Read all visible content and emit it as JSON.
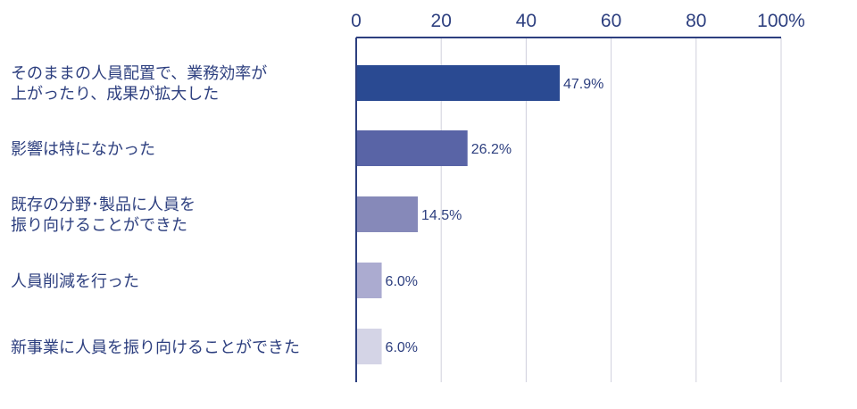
{
  "chart_data": {
    "type": "bar",
    "orientation": "horizontal",
    "categories": [
      [
        "そのままの人員配置で、業務効率が",
        "上がったり、成果が拡大した"
      ],
      [
        "影響は特になかった"
      ],
      [
        "既存の分野･製品に人員を",
        "振り向けることができた"
      ],
      [
        "人員削減を行った"
      ],
      [
        "新事業に人員を振り向けることができた"
      ]
    ],
    "values": [
      47.9,
      26.2,
      14.5,
      6.0,
      6.0
    ],
    "value_labels": [
      "47.9%",
      "26.2%",
      "14.5%",
      "6.0%",
      "6.0%"
    ],
    "x_ticks": [
      "0",
      "20",
      "40",
      "60",
      "80",
      "100%"
    ],
    "x_tick_values": [
      0,
      20,
      40,
      60,
      80,
      100
    ],
    "xlim": [
      0,
      100
    ],
    "axis_position": "top",
    "grid": true,
    "bar_colors": [
      "#2a4a92",
      "#5964a6",
      "#8689b9",
      "#ababd0",
      "#d4d4e6"
    ],
    "text_color": "#2d3f7f",
    "axis_color": "#2d3f7f",
    "grid_color": "#d0d0dc"
  }
}
